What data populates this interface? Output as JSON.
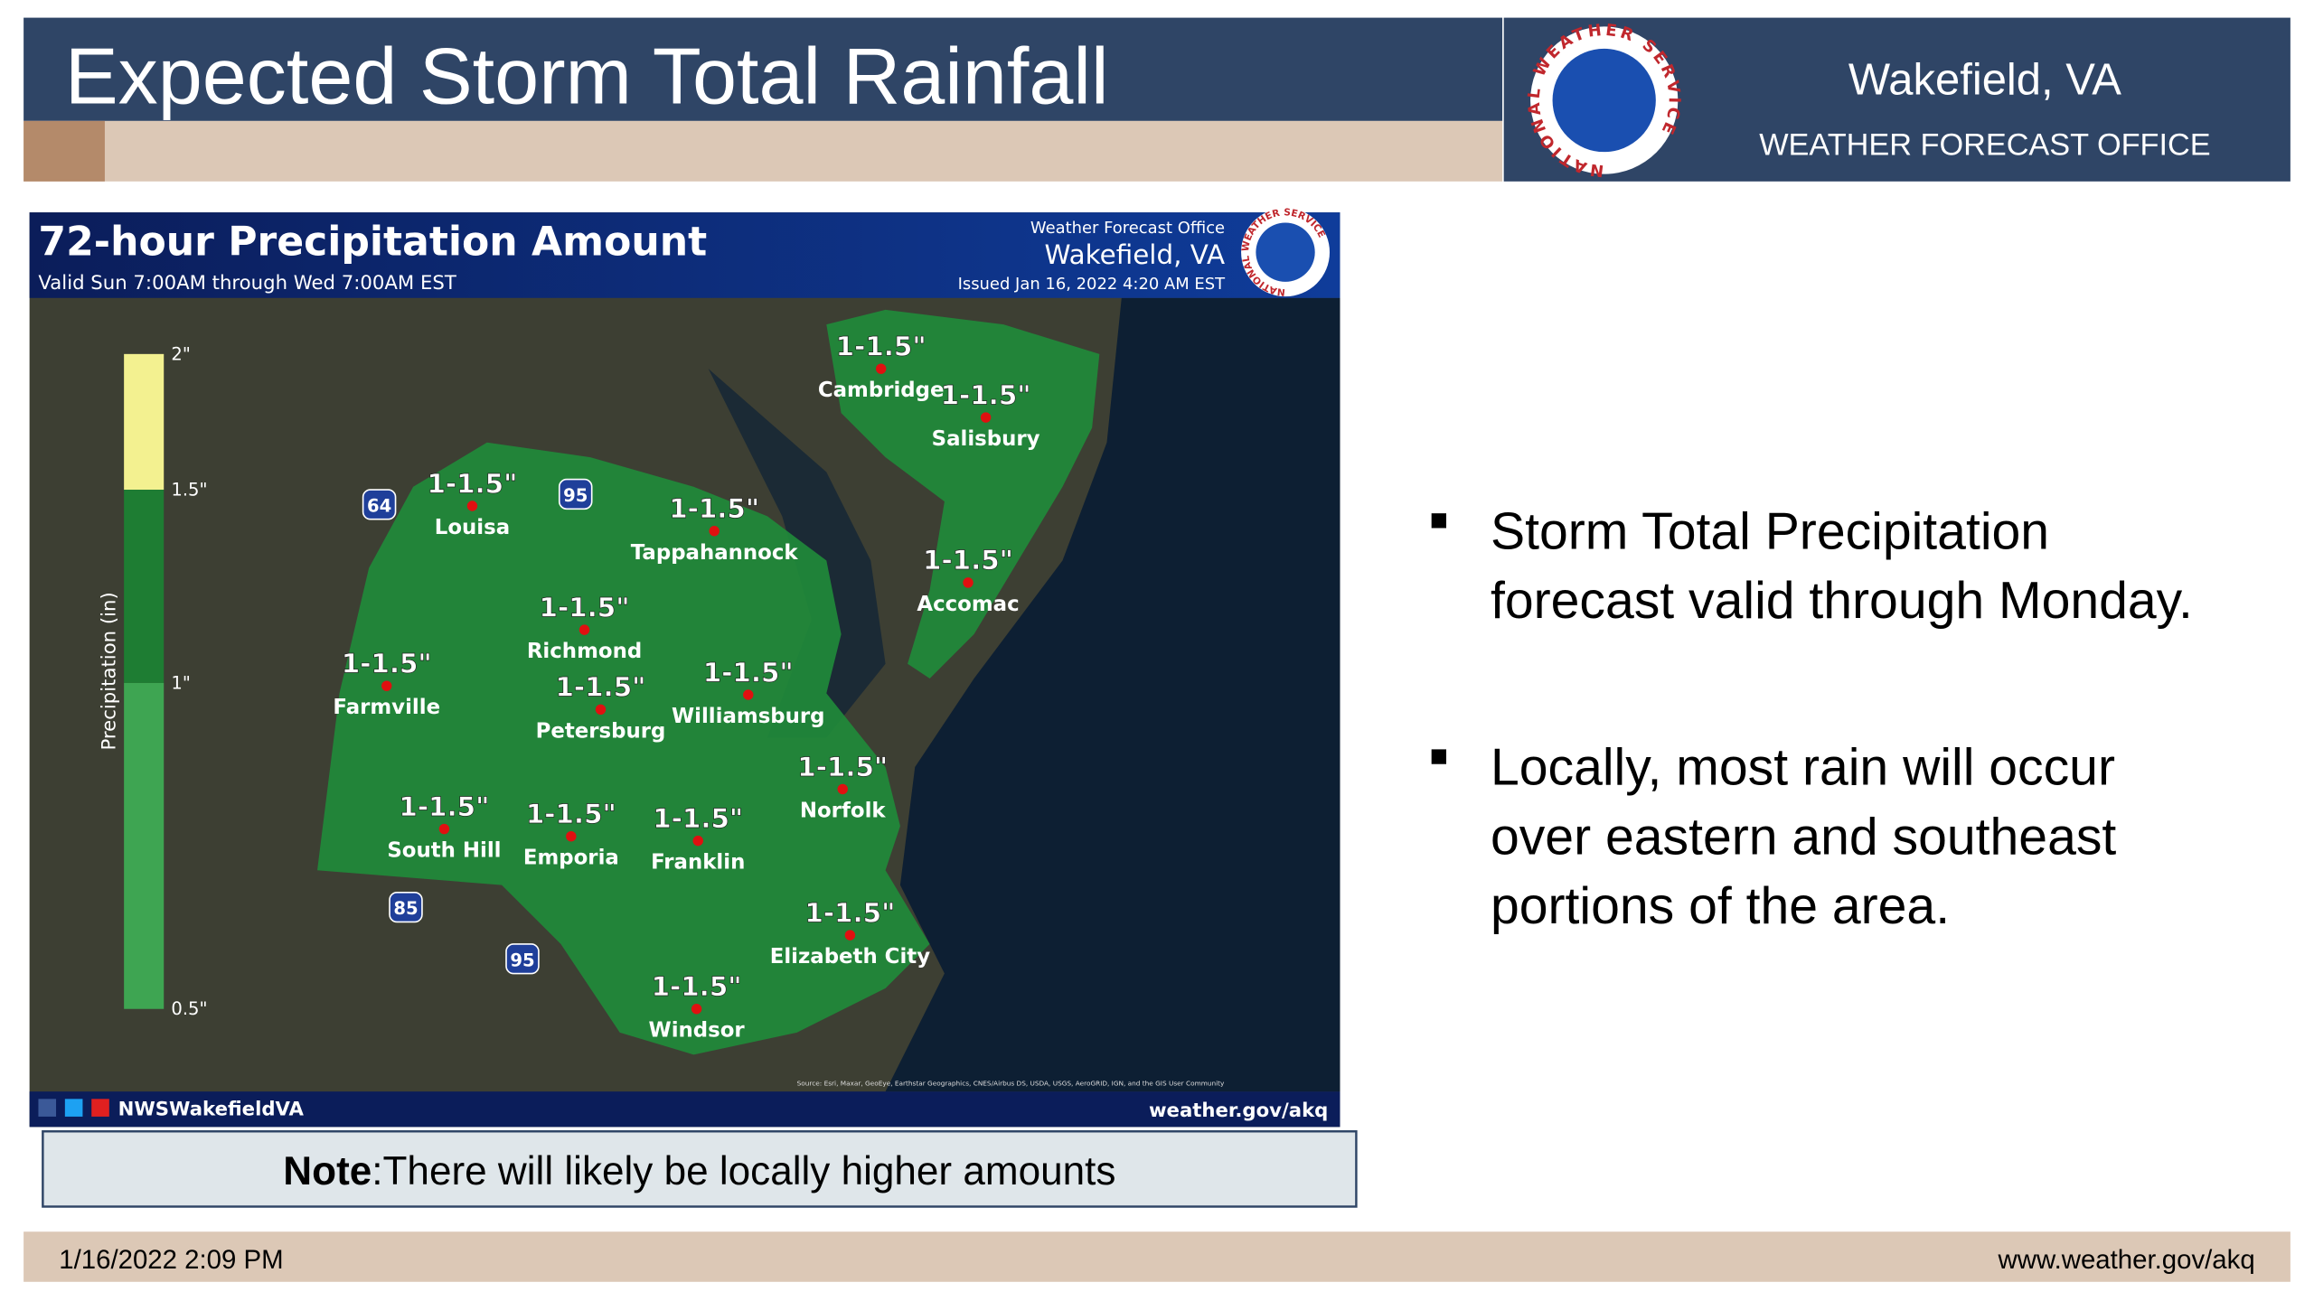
{
  "header": {
    "title": "Expected Storm Total Rainfall",
    "office": "Wakefield, VA",
    "office_sub": "WEATHER FORECAST OFFICE",
    "logo_text": "NATIONAL WEATHER SERVICE"
  },
  "map": {
    "title": "72-hour Precipitation Amount",
    "valid": "Valid Sun 7:00AM through Wed 7:00AM EST",
    "issuer_line1": "Weather Forecast Office",
    "issuer_line2": "Wakefield, VA",
    "issued": "Issued Jan 16, 2022 4:20 AM EST",
    "legend_label": "Precipitation (in)",
    "legend_ticks": [
      "2\"",
      "1.5\"",
      "1\"",
      "0.5\""
    ],
    "shields": [
      "64",
      "95",
      "85",
      "95"
    ],
    "cities": [
      {
        "name": "Cambridge",
        "amount": "1-1.5\""
      },
      {
        "name": "Salisbury",
        "amount": "1-1.5\""
      },
      {
        "name": "Louisa",
        "amount": "1-1.5\""
      },
      {
        "name": "Tappahannock",
        "amount": "1-1.5\""
      },
      {
        "name": "Accomac",
        "amount": "1-1.5\""
      },
      {
        "name": "Richmond",
        "amount": "1-1.5\""
      },
      {
        "name": "Farmville",
        "amount": "1-1.5\""
      },
      {
        "name": "Petersburg",
        "amount": "1-1.5\""
      },
      {
        "name": "Williamsburg",
        "amount": "1-1.5\""
      },
      {
        "name": "Norfolk",
        "amount": "1-1.5\""
      },
      {
        "name": "South Hill",
        "amount": "1-1.5\""
      },
      {
        "name": "Emporia",
        "amount": "1-1.5\""
      },
      {
        "name": "Franklin",
        "amount": "1-1.5\""
      },
      {
        "name": "Elizabeth City",
        "amount": "1-1.5\""
      },
      {
        "name": "Windsor",
        "amount": "1-1.5\""
      }
    ],
    "source": "Source: Esri, Maxar, GeoEye, Earthstar Geographics, CNES/Airbus DS, USDA, USGS, AeroGRID, IGN, and the GIS User Community",
    "social": "NWSWakefieldVA",
    "url": "weather.gov/akq"
  },
  "note": {
    "label": "Note",
    "text": ":There will likely be locally higher amounts"
  },
  "bullets": [
    [
      "Storm Total Precipitation",
      "forecast valid through Monday."
    ],
    [
      "Locally, most rain will occur",
      "over eastern and southeast",
      "portions of the area."
    ]
  ],
  "footer": {
    "date": "1/16/2022 2:09 PM",
    "url": "www.weather.gov/akq"
  }
}
